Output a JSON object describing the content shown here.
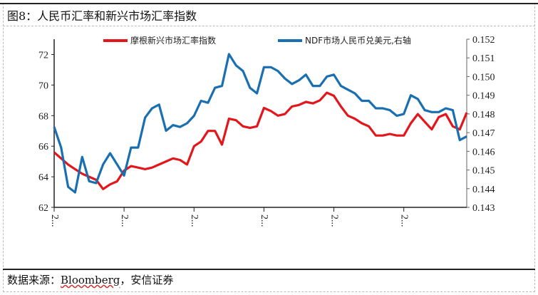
{
  "title": "图8：人民币汇率和新兴市场汇率指数",
  "source_prefix": "数据来源：",
  "source_name": "Bloomberg",
  "source_suffix": "，安信证券",
  "chart_data": {
    "type": "line",
    "title": "图8：人民币汇率和新兴市场汇率指数",
    "legend_position": "top",
    "grid": false,
    "x_tick_labels": [
      "2...",
      "2...",
      "2...",
      "2...",
      "2...",
      "2..."
    ],
    "x_tick_indices": [
      0,
      10,
      20,
      30,
      40,
      50
    ],
    "left_axis": {
      "ylim": [
        62,
        73
      ],
      "ticks": [
        62,
        64,
        66,
        68,
        70,
        72
      ]
    },
    "right_axis": {
      "ylim": [
        0.143,
        0.152
      ],
      "ticks": [
        "0.143",
        "0.144",
        "0.145",
        "0.146",
        "0.147",
        "0.148",
        "0.149",
        "0.150",
        "0.151",
        "0.152"
      ]
    },
    "series": [
      {
        "name": "摩根新兴市场汇率指数",
        "axis": "left",
        "color": "#e3161b",
        "values": [
          65.6,
          65.2,
          64.8,
          64.5,
          64.2,
          64.0,
          63.8,
          63.2,
          63.5,
          63.7,
          64.4,
          64.7,
          64.6,
          64.5,
          64.6,
          64.8,
          65.0,
          65.2,
          65.1,
          64.8,
          66.0,
          66.3,
          67.0,
          67.0,
          66.1,
          67.8,
          67.7,
          67.3,
          67.2,
          67.3,
          68.5,
          68.3,
          68.0,
          68.1,
          68.6,
          68.7,
          68.9,
          68.8,
          69.0,
          69.5,
          69.3,
          68.6,
          68.0,
          67.8,
          67.5,
          67.3,
          66.7,
          66.7,
          66.8,
          66.7,
          66.7,
          67.5,
          68.1,
          67.6,
          67.1,
          67.9,
          68.1,
          67.3,
          67.1,
          68.2
        ]
      },
      {
        "name": "NDF市场人民币兑美元,右轴",
        "axis": "right",
        "color": "#1a6fb0",
        "values": [
          0.1473,
          0.1462,
          0.1441,
          0.1438,
          0.1457,
          0.1444,
          0.1443,
          0.1453,
          0.1459,
          0.1453,
          0.1447,
          0.1462,
          0.1462,
          0.1478,
          0.1483,
          0.1485,
          0.1471,
          0.1474,
          0.1473,
          0.1475,
          0.1479,
          0.1487,
          0.1486,
          0.1494,
          0.1495,
          0.1512,
          0.1506,
          0.1503,
          0.1494,
          0.1491,
          0.1505,
          0.1505,
          0.1503,
          0.1499,
          0.1496,
          0.1498,
          0.1501,
          0.1495,
          0.1495,
          0.15,
          0.1501,
          0.1495,
          0.1493,
          0.1491,
          0.1487,
          0.1487,
          0.1483,
          0.1483,
          0.1482,
          0.1479,
          0.148,
          0.149,
          0.1488,
          0.1482,
          0.1481,
          0.1481,
          0.1483,
          0.1482,
          0.1466,
          0.1468
        ]
      }
    ]
  }
}
